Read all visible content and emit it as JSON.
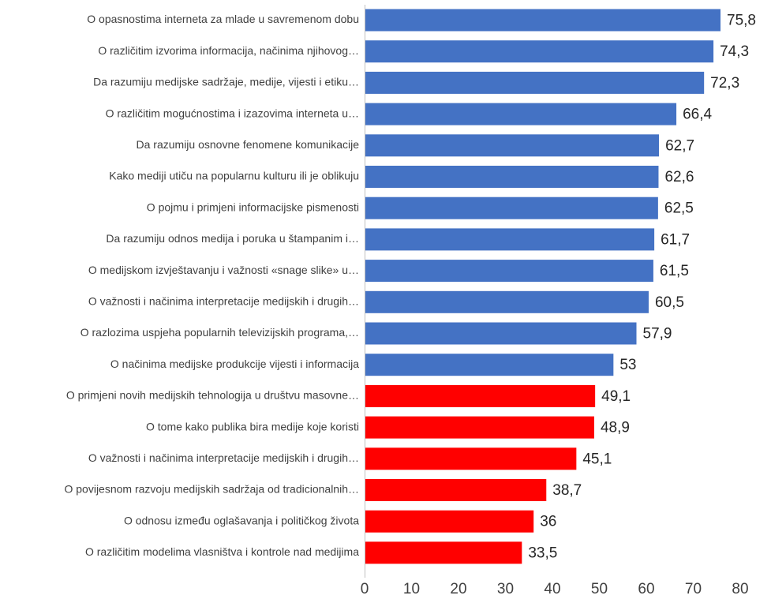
{
  "chart_data": {
    "type": "bar",
    "orientation": "horizontal",
    "title": "",
    "xlabel": "",
    "ylabel": "",
    "xlim": [
      0,
      80
    ],
    "ticks": [
      "0",
      "10",
      "20",
      "30",
      "40",
      "50",
      "60",
      "70",
      "80"
    ],
    "grid": false,
    "colors": {
      "above": "#4472C4",
      "below": "#FF0000"
    },
    "categories": [
      "O opasnostima interneta za mlade u savremenom dobu",
      "O različitim izvorima informacija, načinima njihovog…",
      "Da razumiju medijske sadržaje, medije, vijesti i etiku…",
      "O različitim mogućnostima i izazovima interneta u…",
      "Da razumiju osnovne fenomene komunikacije",
      "Kako mediji utiču na popularnu kulturu ili je oblikuju",
      "O pojmu i primjeni informacijske pismenosti",
      "Da razumiju odnos medija i poruka u štampanim i…",
      "O medijskom izvještavanju i važnosti «snage slike» u…",
      "O važnosti i načinima interpretacije medijskih i drugih…",
      "O razlozima uspjeha popularnih televizijskih programa,…",
      "O načinima medijske produkcije vijesti i informacija",
      "O primjeni novih medijskih tehnologija u društvu masovne…",
      "O tome kako publika bira medije koje koristi",
      "O važnosti i načinima interpretacije medijskih i drugih…",
      "O povijesnom razvoju medijskih sadržaja od tradicionalnih…",
      "O odnosu između oglašavanja i političkog života",
      "O različitim modelima vlasništva i kontrole nad medijima"
    ],
    "values": [
      75.8,
      74.3,
      72.3,
      66.4,
      62.7,
      62.6,
      62.5,
      61.7,
      61.5,
      60.5,
      57.9,
      53,
      49.1,
      48.9,
      45.1,
      38.7,
      36,
      33.5
    ],
    "value_labels": [
      "75,8",
      "74,3",
      "72,3",
      "66,4",
      "62,7",
      "62,6",
      "62,5",
      "61,7",
      "61,5",
      "60,5",
      "57,9",
      "53",
      "49,1",
      "48,9",
      "45,1",
      "38,7",
      "36",
      "33,5"
    ],
    "bar_colors": [
      "above",
      "above",
      "above",
      "above",
      "above",
      "above",
      "above",
      "above",
      "above",
      "above",
      "above",
      "above",
      "below",
      "below",
      "below",
      "below",
      "below",
      "below"
    ]
  }
}
